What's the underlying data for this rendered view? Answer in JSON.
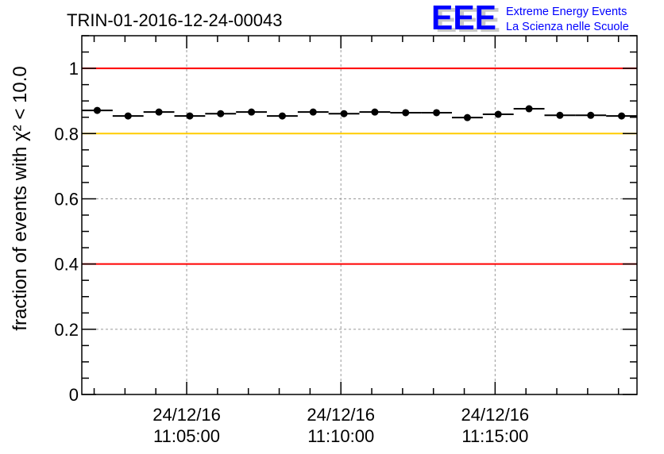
{
  "chart_data": {
    "type": "scatter",
    "title": "TRIN-01-2016-12-24-00043",
    "ylabel": "fraction of events with χ² < 10.0",
    "xlabel": "",
    "x_unit": "minutes after 24/12/16 11:00:00",
    "xlim": [
      1.6,
      19.6
    ],
    "ylim": [
      0,
      1.1
    ],
    "x": [
      2.1,
      3.1,
      4.1,
      5.1,
      6.1,
      7.1,
      8.1,
      9.1,
      10.1,
      11.1,
      12.1,
      13.1,
      14.1,
      15.1,
      16.1,
      17.1,
      18.1,
      19.1
    ],
    "bin_width": 1,
    "values": [
      0.871,
      0.854,
      0.866,
      0.854,
      0.861,
      0.866,
      0.854,
      0.866,
      0.861,
      0.866,
      0.864,
      0.864,
      0.849,
      0.859,
      0.876,
      0.856,
      0.856,
      0.854
    ],
    "yticks": [
      {
        "v": 0,
        "label": "0"
      },
      {
        "v": 0.2,
        "label": "0.2"
      },
      {
        "v": 0.4,
        "label": "0.4"
      },
      {
        "v": 0.6,
        "label": "0.6"
      },
      {
        "v": 0.8,
        "label": "0.8"
      },
      {
        "v": 1,
        "label": "1"
      }
    ],
    "xticks": [
      {
        "v": 5,
        "date": "24/12/16",
        "time": "11:05:00"
      },
      {
        "v": 10,
        "date": "24/12/16",
        "time": "11:10:00"
      },
      {
        "v": 15,
        "date": "24/12/16",
        "time": "11:15:00"
      }
    ],
    "reference_lines": [
      {
        "y": 1.0,
        "color": "#ff0000"
      },
      {
        "y": 0.8,
        "color": "#ffcc00"
      },
      {
        "y": 0.4,
        "color": "#ff0000"
      }
    ],
    "grid": true
  },
  "logo": {
    "mark": "EEE",
    "line1": "Extreme Energy Events",
    "line2": "La Scienza nelle Scuole",
    "color": "#0000ff"
  }
}
